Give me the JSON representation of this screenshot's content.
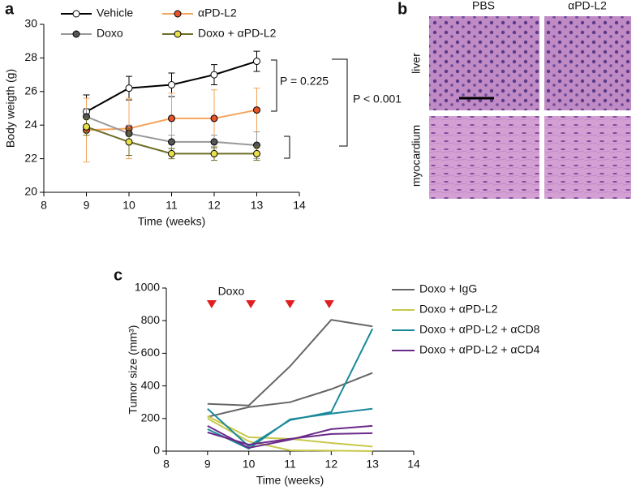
{
  "panel_labels": [
    "a",
    "b",
    "c"
  ],
  "histology": {
    "columns": [
      "PBS",
      "αPD-L2"
    ],
    "rows": [
      "liver",
      "myocardium"
    ]
  },
  "chart_data": [
    {
      "type": "line",
      "x_label": "Time (weeks)",
      "y_label": "Body weigth (g)",
      "x": [
        9,
        10,
        11,
        12,
        13
      ],
      "xlim": [
        8,
        14
      ],
      "xticks": [
        8,
        9,
        10,
        11,
        12,
        13,
        14
      ],
      "ylim": [
        20,
        30
      ],
      "yticks": [
        20,
        22,
        24,
        26,
        28,
        30
      ],
      "annotations": [
        "P = 0.225",
        "P < 0.001"
      ],
      "series": [
        {
          "name": "Vehicle",
          "color": "#000000",
          "marker_color": "#ffffff",
          "values": [
            24.8,
            26.2,
            26.4,
            27.0,
            27.8
          ],
          "errors": [
            1.0,
            0.7,
            0.7,
            0.6,
            0.6
          ]
        },
        {
          "name": "αPD-L2",
          "color": "#f4a45c",
          "marker_color": "#e8542a",
          "values": [
            23.7,
            23.8,
            24.4,
            24.4,
            24.9
          ],
          "errors": [
            1.9,
            1.8,
            1.5,
            1.7,
            1.3
          ]
        },
        {
          "name": "Doxo",
          "color": "#999999",
          "marker_color": "#555555",
          "values": [
            24.5,
            23.5,
            23.0,
            23.0,
            22.8
          ],
          "errors": [
            0.5,
            0.5,
            0.4,
            0.4,
            0.8
          ]
        },
        {
          "name": "Doxo + αPD-L2",
          "color": "#6e6e2a",
          "marker_color": "#e8e04a",
          "values": [
            23.9,
            23.0,
            22.3,
            22.3,
            22.3
          ],
          "errors": [
            0.5,
            0.8,
            0.3,
            0.4,
            0.4
          ]
        }
      ]
    },
    {
      "type": "line",
      "x_label": "Time (weeks)",
      "y_label": "Tumor size (mm³)",
      "x": [
        9,
        10,
        11,
        12,
        13
      ],
      "xlim": [
        8,
        14
      ],
      "xticks": [
        8,
        9,
        10,
        11,
        12,
        13,
        14
      ],
      "ylim": [
        0,
        1000
      ],
      "yticks": [
        0,
        200,
        400,
        600,
        800,
        1000
      ],
      "doses": {
        "label": "Doxo",
        "color": "#e02020",
        "x": [
          9.1,
          10.05,
          11.0,
          11.95
        ]
      },
      "series": [
        {
          "name": "Doxo + IgG",
          "color": "#666666",
          "values": [
            [
              290,
              280,
              520,
              805,
              765
            ],
            [
              210,
              270,
              300,
              380,
              480
            ]
          ]
        },
        {
          "name": "Doxo + αPD-L2",
          "color": "#c8c84a",
          "values": [
            [
              200,
              60,
              5,
              3,
              0
            ],
            [
              215,
              85,
              75,
              50,
              28
            ]
          ]
        },
        {
          "name": "Doxo + αPD-L2 + αCD8",
          "color": "#1a8a9a",
          "values": [
            [
              260,
              30,
              190,
              240,
              750
            ],
            [
              135,
              15,
              195,
              230,
              260
            ]
          ]
        },
        {
          "name": "Doxo + αPD-L2 + αCD4",
          "color": "#6a2a8a",
          "values": [
            [
              155,
              20,
              70,
              135,
              155
            ],
            [
              115,
              40,
              75,
              105,
              110
            ]
          ]
        }
      ]
    }
  ]
}
